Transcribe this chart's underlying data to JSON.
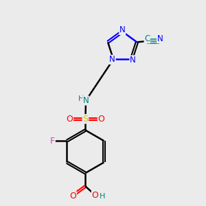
{
  "background_color": "#ebebeb",
  "bond_color": "#000000",
  "bond_width": 1.8,
  "N_color": "#0000ff",
  "O_color": "#ff0000",
  "S_color": "#cccc00",
  "F_color": "#cc44cc",
  "C_color": "#008080",
  "H_color": "#008080",
  "figsize": [
    3.0,
    3.0
  ],
  "dpi": 100,
  "xlim": [
    0,
    10
  ],
  "ylim": [
    0,
    10
  ]
}
